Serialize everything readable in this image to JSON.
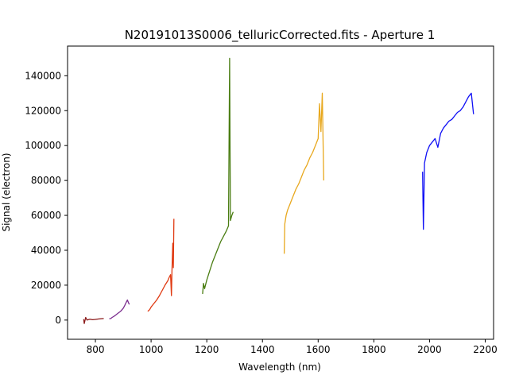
{
  "chart_data": {
    "type": "line",
    "title": "N20191013S0006_telluricCorrected.fits - Aperture 1",
    "xlabel": "Wavelength (nm)",
    "ylabel": "Signal (electron)",
    "xlim": [
      700,
      2230
    ],
    "ylim": [
      -11000,
      157000
    ],
    "xticks": [
      800,
      1000,
      1200,
      1400,
      1600,
      1800,
      2000,
      2200
    ],
    "yticks": [
      0,
      20000,
      40000,
      60000,
      80000,
      100000,
      120000,
      140000
    ],
    "xtick_labels": [
      "800",
      "1000",
      "1200",
      "1400",
      "1600",
      "1800",
      "2000",
      "2200"
    ],
    "ytick_labels": [
      "0",
      "20000",
      "40000",
      "60000",
      "80000",
      "100000",
      "120000",
      "140000"
    ],
    "grid": false,
    "legend": "none",
    "series": [
      {
        "color": "#8b1a1a",
        "x": [
          758,
          760,
          765,
          770,
          775,
          780,
          790,
          800,
          810,
          820,
          830
        ],
        "y": [
          500,
          -2000,
          1500,
          0,
          300,
          500,
          200,
          400,
          600,
          800,
          900
        ]
      },
      {
        "color": "#7b2d8e",
        "x": [
          850,
          855,
          860,
          870,
          880,
          890,
          900,
          905,
          910,
          915,
          920,
          922
        ],
        "y": [
          800,
          900,
          1500,
          2500,
          3800,
          5000,
          6800,
          8200,
          10000,
          11500,
          9500,
          9000
        ]
      },
      {
        "color": "#e03a12",
        "x": [
          988,
          995,
          1000,
          1010,
          1020,
          1030,
          1040,
          1050,
          1060,
          1065,
          1070,
          1073,
          1075,
          1078,
          1080,
          1082
        ],
        "y": [
          5000,
          6000,
          7500,
          9500,
          11500,
          14000,
          17000,
          20000,
          22500,
          24500,
          26000,
          14000,
          29000,
          44000,
          30000,
          58000
        ]
      },
      {
        "color": "#4a7d12",
        "x": [
          1185,
          1188,
          1192,
          1200,
          1210,
          1220,
          1230,
          1240,
          1250,
          1260,
          1270,
          1278,
          1282,
          1285,
          1290,
          1295
        ],
        "y": [
          15000,
          21000,
          18000,
          23000,
          28000,
          33000,
          37000,
          41000,
          45000,
          48000,
          51000,
          54000,
          150000,
          57000,
          60000,
          62000
        ]
      },
      {
        "color": "#e8a81e",
        "x": [
          1478,
          1480,
          1485,
          1490,
          1500,
          1510,
          1520,
          1530,
          1540,
          1550,
          1560,
          1570,
          1580,
          1590,
          1600,
          1605,
          1610,
          1615,
          1620
        ],
        "y": [
          38000,
          55000,
          60000,
          63000,
          67000,
          71000,
          75000,
          78000,
          82000,
          86000,
          89000,
          93000,
          96000,
          100000,
          104000,
          124000,
          108000,
          130000,
          80000
        ]
      },
      {
        "color": "#1010f5",
        "x": [
          1975,
          1978,
          1982,
          1990,
          2000,
          2010,
          2020,
          2030,
          2040,
          2050,
          2060,
          2070,
          2080,
          2090,
          2100,
          2110,
          2120,
          2130,
          2140,
          2150,
          2158
        ],
        "y": [
          85000,
          52000,
          90000,
          96000,
          100000,
          102000,
          104000,
          99000,
          107000,
          110000,
          112000,
          114000,
          115000,
          117000,
          119000,
          120000,
          122000,
          125000,
          128000,
          130000,
          118000
        ]
      }
    ]
  }
}
